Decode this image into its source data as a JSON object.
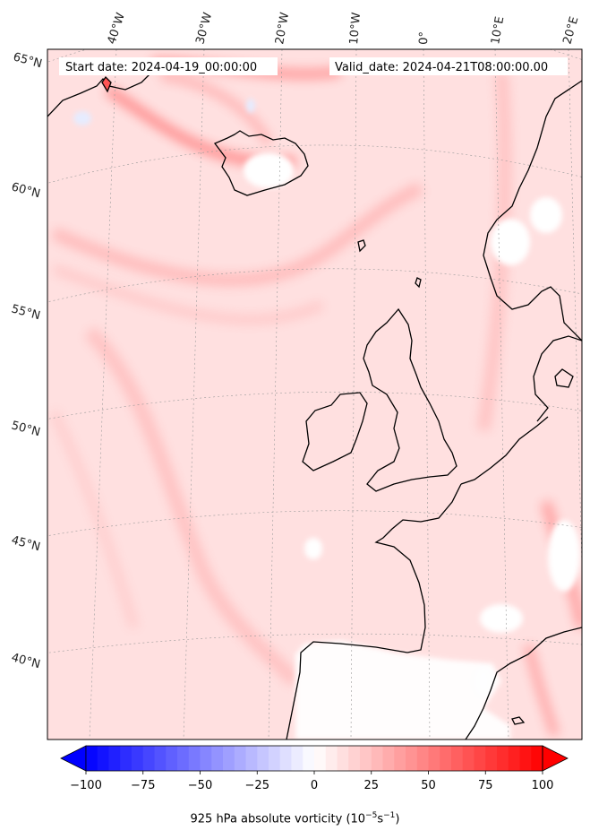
{
  "header": {
    "start_date": "Start date: 2024-04-19_00:00:00",
    "valid_date": "Valid_date: 2024-04-21T08:00:00.00"
  },
  "gridlines": {
    "lon_labels": [
      "40°W",
      "30°W",
      "20°W",
      "10°W",
      "0°",
      "10°E",
      "20°E"
    ],
    "lat_labels": [
      "65°N",
      "60°N",
      "55°N",
      "50°N",
      "45°N",
      "40°N"
    ]
  },
  "colorbar": {
    "label_prefix": "925 hPa absolute vorticity (10",
    "label_exp1": "−5",
    "label_mid": "s",
    "label_exp2": "−1",
    "label_suffix": ")",
    "ticks": [
      "−100",
      "−75",
      "−50",
      "−25",
      "0",
      "25",
      "50",
      "75",
      "100"
    ],
    "range": [
      -100,
      100
    ],
    "colormap": "bwr",
    "low_color": "#0000ff",
    "mid_color": "#ffffff",
    "high_color": "#ff0000",
    "extend": "both"
  },
  "map": {
    "background_tint": "#ffdcdc",
    "coastline_color": "#000000",
    "projection": "Lambert conformal"
  }
}
